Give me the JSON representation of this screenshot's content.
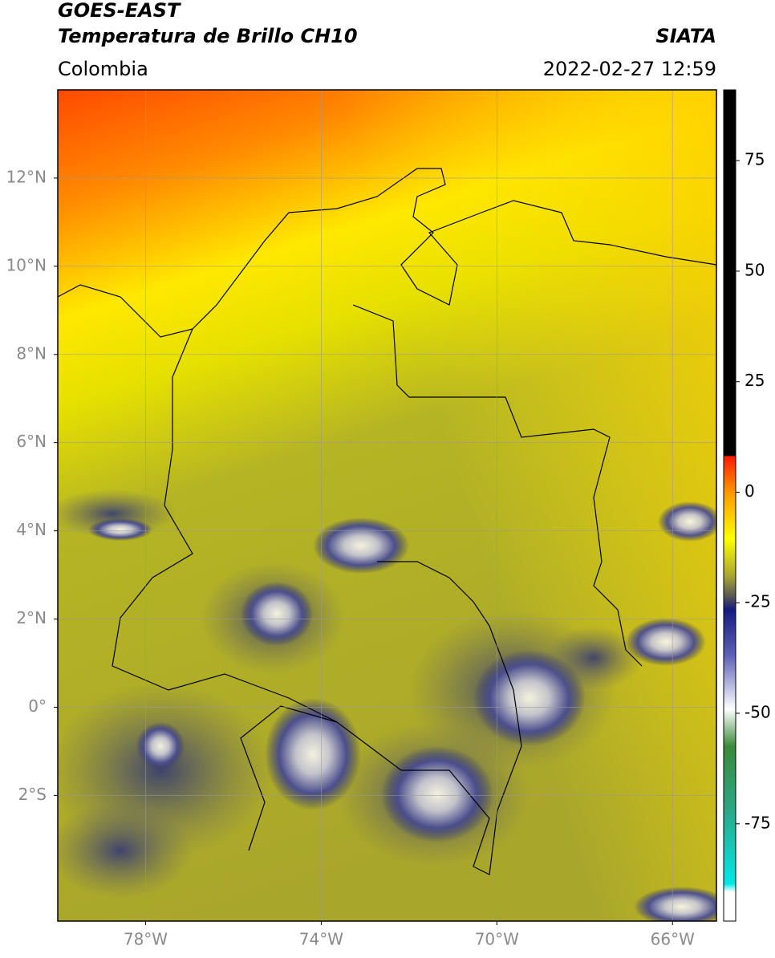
{
  "header": {
    "title": "GOES-EAST",
    "subtitle": "Temperatura de Brillo CH10",
    "region": "Colombia",
    "source": "SIATA",
    "datetime": "2022-02-27 12:59"
  },
  "map": {
    "lon_lim": [
      -80,
      -65
    ],
    "lat_lim": [
      -4.85,
      14
    ],
    "lat_ticks": [
      {
        "value": 12,
        "label": "12°N"
      },
      {
        "value": 10,
        "label": "10°N"
      },
      {
        "value": 8,
        "label": "8°N"
      },
      {
        "value": 6,
        "label": "6°N"
      },
      {
        "value": 4,
        "label": "4°N"
      },
      {
        "value": 2,
        "label": "2°N"
      },
      {
        "value": 0,
        "label": "0°"
      },
      {
        "value": -2,
        "label": "2°S"
      }
    ],
    "lon_ticks": [
      {
        "value": -78,
        "label": "78°W"
      },
      {
        "value": -74,
        "label": "74°W"
      },
      {
        "value": -70,
        "label": "70°W"
      },
      {
        "value": -66,
        "label": "66°W"
      }
    ]
  },
  "colorbar": {
    "range": [
      -97,
      91
    ],
    "ticks": [
      75,
      50,
      25,
      0,
      -25,
      -50,
      -75
    ]
  }
}
